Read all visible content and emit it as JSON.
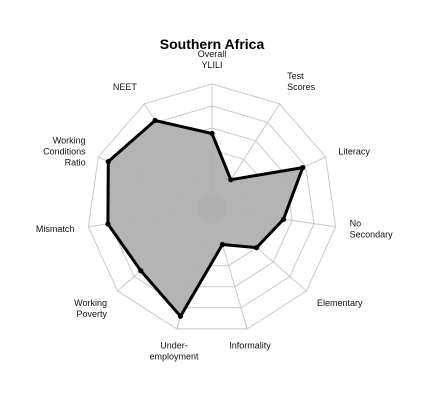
{
  "chart_data": {
    "type": "radar",
    "title": "Southern Africa",
    "axes": [
      [
        "Overall",
        "YLILI"
      ],
      [
        "Test",
        "Scores"
      ],
      [
        "Literacy"
      ],
      [
        "No",
        "Secondary"
      ],
      [
        "Elementary"
      ],
      [
        "Informality"
      ],
      [
        "Under-",
        "employment"
      ],
      [
        "Working",
        "Poverty"
      ],
      [
        "Mismatch"
      ],
      [
        "Working",
        "Conditions",
        "Ratio"
      ],
      [
        "NEET"
      ]
    ],
    "values": [
      0.55,
      0.18,
      0.77,
      0.52,
      0.4,
      0.2,
      0.88,
      0.72,
      0.82,
      0.9,
      0.82
    ],
    "range": [
      0,
      1
    ],
    "grid_levels": 5,
    "colors": {
      "fill": "#b0b0b0",
      "line": "#000000",
      "grid": "#c8c8c8"
    }
  }
}
